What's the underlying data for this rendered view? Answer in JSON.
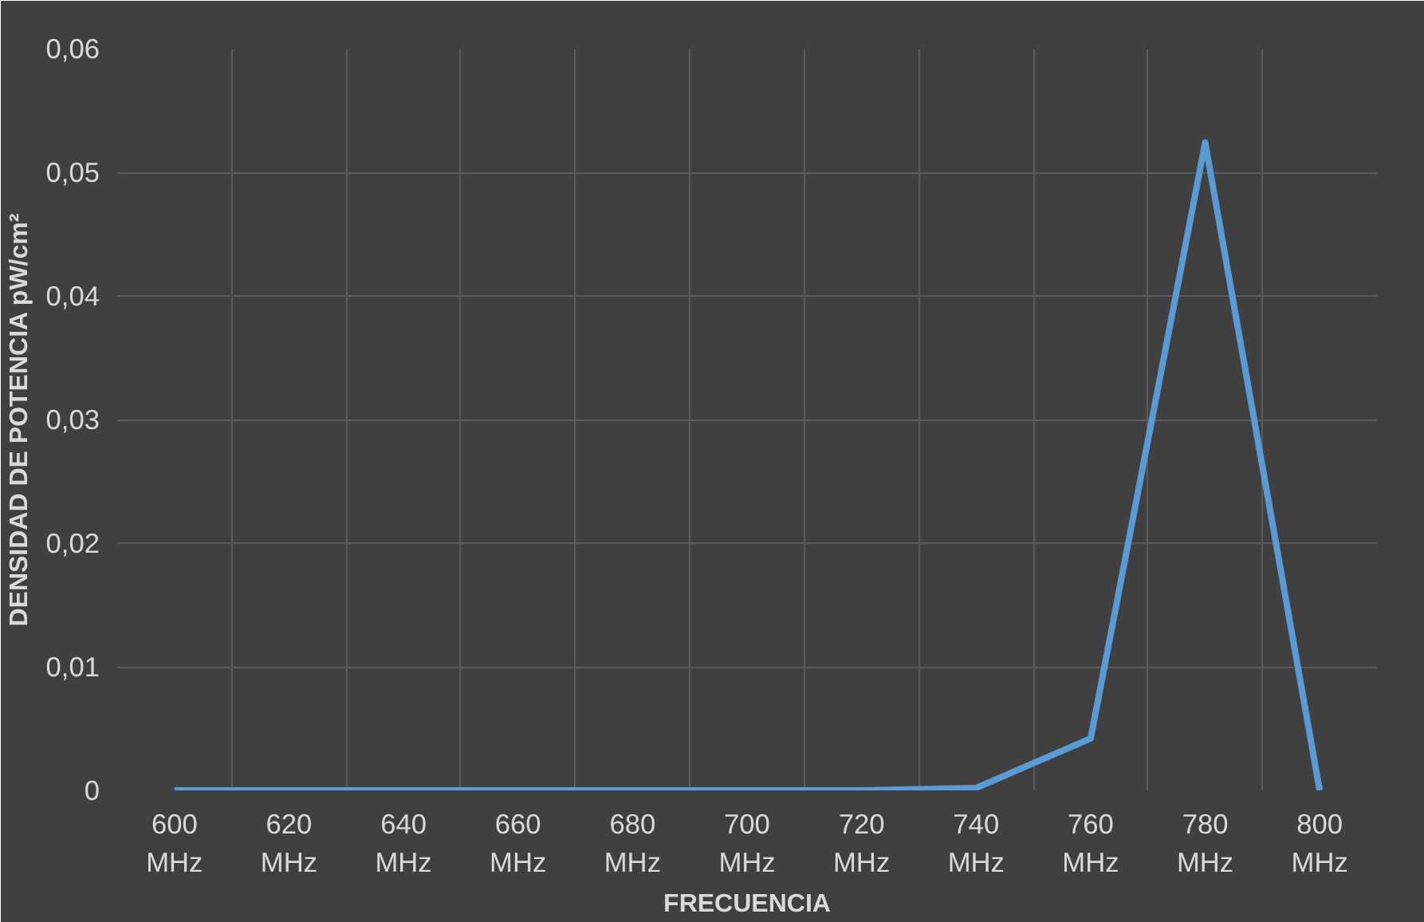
{
  "chart_data": {
    "type": "line",
    "xlabel": "FRECUENCIA",
    "ylabel": "DENSIDAD DE POTENCIA pW/cm²",
    "categories": [
      "600 MHz",
      "620 MHz",
      "640 MHz",
      "660 MHz",
      "680 MHz",
      "700 MHz",
      "720 MHz",
      "740 MHz",
      "760 MHz",
      "780 MHz",
      "800 MHz"
    ],
    "series": [
      {
        "color": "#5b9bd5",
        "values": [
          0,
          0,
          0,
          0,
          0,
          0,
          0,
          0.0002,
          0.0042,
          0.0524,
          0
        ]
      }
    ],
    "ylim": [
      0,
      0.06
    ],
    "yticks": [
      {
        "value": 0,
        "label": "0"
      },
      {
        "value": 0.01,
        "label": "0,01"
      },
      {
        "value": 0.02,
        "label": "0,02"
      },
      {
        "value": 0.03,
        "label": "0,03"
      },
      {
        "value": 0.04,
        "label": "0,04"
      },
      {
        "value": 0.05,
        "label": "0,05"
      },
      {
        "value": 0.06,
        "label": "0,06"
      }
    ],
    "grid": true,
    "marker": "none",
    "line_style": "solid"
  }
}
